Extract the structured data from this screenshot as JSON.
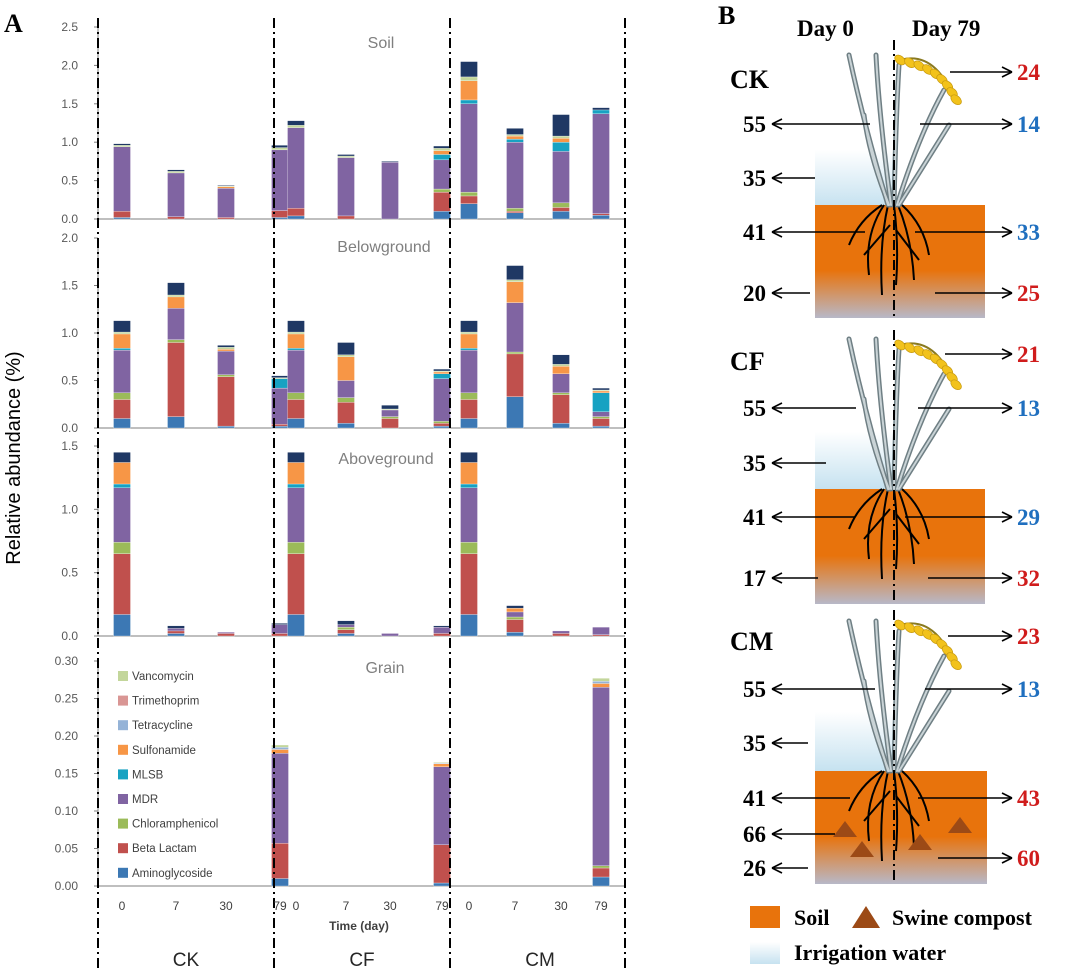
{
  "panel_a_label": "A",
  "panel_b_label": "B",
  "colors": {
    "Aminoglycoside": "#3c78b4",
    "Beta Lactam": "#c0504d",
    "Chloramphenicol": "#9bbb59",
    "MDR": "#8064a2",
    "MLSB": "#17a2c2",
    "Sulfonamide": "#f79646",
    "Tetracycline": "#95b3d7",
    "Trimethoprim": "#d99694",
    "Vancomycin": "#c3d69b",
    "Other": "#1f3864",
    "soil": "#e8730c",
    "water": "#cde6f2",
    "compost": "#8b4513",
    "spike": "#f2c21b"
  },
  "chart_data": {
    "type": "bar",
    "stacked": true,
    "ylabel": "Relative abundance (%)",
    "xlabel": "Time (day)",
    "groups": [
      "CK",
      "CF",
      "CM"
    ],
    "categories": [
      "0",
      "7",
      "30",
      "79"
    ],
    "legend": [
      "Vancomycin",
      "Trimethoprim",
      "Tetracycline",
      "Sulfonamide",
      "MLSB",
      "MDR",
      "Chloramphenicol",
      "Beta Lactam",
      "Aminoglycoside"
    ],
    "stack_order": [
      "Aminoglycoside",
      "Beta Lactam",
      "Chloramphenicol",
      "MDR",
      "MLSB",
      "Sulfonamide",
      "Tetracycline",
      "Trimethoprim",
      "Vancomycin",
      "Other"
    ],
    "panels": [
      {
        "title": "Soil",
        "ylim": [
          0,
          2.5
        ],
        "yticks": [
          "0.0",
          "0.5",
          "1.0",
          "1.5",
          "2.0",
          "2.5"
        ],
        "tick_values": [
          0,
          0.5,
          1.0,
          1.5,
          2.0,
          2.5
        ],
        "bars": [
          [
            0.02,
            0.08,
            0.0,
            0.84,
            0.0,
            0.0,
            0.0,
            0.0,
            0.02,
            0.02
          ],
          [
            0.0,
            0.03,
            0.0,
            0.57,
            0.0,
            0.0,
            0.0,
            0.0,
            0.02,
            0.02
          ],
          [
            0.0,
            0.02,
            0.0,
            0.38,
            0.0,
            0.02,
            0.0,
            0.0,
            0.01,
            0.01
          ],
          [
            0.02,
            0.09,
            0.0,
            0.79,
            0.0,
            0.0,
            0.0,
            0.0,
            0.03,
            0.03
          ],
          [
            0.04,
            0.1,
            0.0,
            1.05,
            0.0,
            0.0,
            0.0,
            0.0,
            0.03,
            0.06
          ],
          [
            0.0,
            0.04,
            0.0,
            0.76,
            0.0,
            0.0,
            0.0,
            0.0,
            0.02,
            0.02
          ],
          [
            0.0,
            0.0,
            0.0,
            0.74,
            0.0,
            0.0,
            0.0,
            0.0,
            0.0,
            0.01
          ],
          [
            0.1,
            0.25,
            0.04,
            0.38,
            0.07,
            0.05,
            0.0,
            0.0,
            0.03,
            0.03
          ],
          [
            0.2,
            0.1,
            0.05,
            1.15,
            0.05,
            0.25,
            0.0,
            0.0,
            0.05,
            0.2
          ],
          [
            0.08,
            0.02,
            0.04,
            0.86,
            0.04,
            0.04,
            0.0,
            0.0,
            0.02,
            0.08
          ],
          [
            0.1,
            0.05,
            0.06,
            0.67,
            0.12,
            0.05,
            0.0,
            0.0,
            0.03,
            0.28
          ],
          [
            0.05,
            0.02,
            0.0,
            1.3,
            0.05,
            0.0,
            0.0,
            0.0,
            0.0,
            0.03
          ]
        ]
      },
      {
        "title": "Belowground",
        "ylim": [
          0,
          2.0
        ],
        "yticks": [
          "0.0",
          "0.5",
          "1.0",
          "1.5",
          "2.0"
        ],
        "tick_values": [
          0,
          0.5,
          1.0,
          1.5,
          2.0
        ],
        "bars": [
          [
            0.1,
            0.2,
            0.07,
            0.45,
            0.02,
            0.15,
            0.0,
            0.0,
            0.02,
            0.12
          ],
          [
            0.12,
            0.78,
            0.03,
            0.33,
            0.0,
            0.12,
            0.0,
            0.0,
            0.02,
            0.13
          ],
          [
            0.02,
            0.52,
            0.02,
            0.25,
            0.0,
            0.02,
            0.0,
            0.0,
            0.02,
            0.02
          ],
          [
            0.02,
            0.02,
            0.0,
            0.38,
            0.1,
            0.0,
            0.0,
            0.0,
            0.01,
            0.02
          ],
          [
            0.1,
            0.2,
            0.07,
            0.45,
            0.02,
            0.15,
            0.0,
            0.0,
            0.02,
            0.12
          ],
          [
            0.05,
            0.22,
            0.05,
            0.18,
            0.0,
            0.25,
            0.0,
            0.0,
            0.02,
            0.13
          ],
          [
            0.0,
            0.1,
            0.02,
            0.07,
            0.0,
            0.0,
            0.0,
            0.0,
            0.01,
            0.04
          ],
          [
            0.02,
            0.03,
            0.02,
            0.45,
            0.05,
            0.02,
            0.0,
            0.0,
            0.01,
            0.02
          ],
          [
            0.1,
            0.2,
            0.07,
            0.45,
            0.02,
            0.15,
            0.0,
            0.0,
            0.02,
            0.12
          ],
          [
            0.33,
            0.45,
            0.02,
            0.52,
            0.0,
            0.22,
            0.0,
            0.0,
            0.02,
            0.15
          ],
          [
            0.05,
            0.3,
            0.02,
            0.2,
            0.0,
            0.08,
            0.0,
            0.0,
            0.02,
            0.1
          ],
          [
            0.02,
            0.08,
            0.02,
            0.05,
            0.2,
            0.02,
            0.0,
            0.0,
            0.01,
            0.02
          ]
        ]
      },
      {
        "title": "Aboveground",
        "ylim": [
          0,
          1.5
        ],
        "yticks": [
          "0.0",
          "0.5",
          "1.0",
          "1.5"
        ],
        "tick_values": [
          0,
          0.5,
          1.0,
          1.5
        ],
        "bars": [
          [
            0.17,
            0.48,
            0.09,
            0.43,
            0.03,
            0.17,
            0.0,
            0.0,
            0.0,
            0.08
          ],
          [
            0.02,
            0.02,
            0.0,
            0.02,
            0.0,
            0.0,
            0.0,
            0.0,
            0.0,
            0.02
          ],
          [
            0.0,
            0.02,
            0.0,
            0.01,
            0.0,
            0.0,
            0.0,
            0.0,
            0.0,
            0.0
          ],
          [
            0.0,
            0.02,
            0.0,
            0.07,
            0.0,
            0.0,
            0.0,
            0.0,
            0.0,
            0.01
          ],
          [
            0.17,
            0.48,
            0.09,
            0.43,
            0.03,
            0.17,
            0.0,
            0.0,
            0.0,
            0.08
          ],
          [
            0.02,
            0.03,
            0.02,
            0.02,
            0.0,
            0.0,
            0.0,
            0.0,
            0.0,
            0.03
          ],
          [
            0.0,
            0.0,
            0.0,
            0.02,
            0.0,
            0.0,
            0.0,
            0.0,
            0.0,
            0.0
          ],
          [
            0.0,
            0.02,
            0.0,
            0.05,
            0.0,
            0.0,
            0.0,
            0.0,
            0.0,
            0.01
          ],
          [
            0.17,
            0.48,
            0.09,
            0.43,
            0.03,
            0.17,
            0.0,
            0.0,
            0.0,
            0.08
          ],
          [
            0.03,
            0.1,
            0.02,
            0.04,
            0.0,
            0.03,
            0.0,
            0.0,
            0.0,
            0.02
          ],
          [
            0.0,
            0.02,
            0.0,
            0.02,
            0.0,
            0.0,
            0.0,
            0.0,
            0.0,
            0.0
          ],
          [
            0.0,
            0.01,
            0.0,
            0.06,
            0.0,
            0.0,
            0.0,
            0.0,
            0.0,
            0.0
          ]
        ]
      },
      {
        "title": "Grain",
        "ylim": [
          0,
          0.3
        ],
        "yticks": [
          "0.00",
          "0.05",
          "0.10",
          "0.15",
          "0.20",
          "0.25",
          "0.30"
        ],
        "tick_values": [
          0,
          0.05,
          0.1,
          0.15,
          0.2,
          0.25,
          0.3
        ],
        "bars": [
          [
            0,
            0,
            0,
            0,
            0,
            0,
            0,
            0,
            0,
            0
          ],
          [
            0,
            0,
            0,
            0,
            0,
            0,
            0,
            0,
            0,
            0
          ],
          [
            0,
            0,
            0,
            0,
            0,
            0,
            0,
            0,
            0,
            0
          ],
          [
            0.01,
            0.047,
            0.0,
            0.12,
            0.0,
            0.005,
            0.003,
            0.0,
            0.003,
            0.0
          ],
          [
            0,
            0,
            0,
            0,
            0,
            0,
            0,
            0,
            0,
            0
          ],
          [
            0,
            0,
            0,
            0,
            0,
            0,
            0,
            0,
            0,
            0
          ],
          [
            0,
            0,
            0,
            0,
            0,
            0,
            0,
            0,
            0,
            0
          ],
          [
            0.004,
            0.051,
            0.0,
            0.104,
            0.0,
            0.004,
            0.001,
            0.0,
            0.001,
            0.0
          ],
          [
            0,
            0,
            0,
            0,
            0,
            0,
            0,
            0,
            0,
            0
          ],
          [
            0,
            0,
            0,
            0,
            0,
            0,
            0,
            0,
            0,
            0
          ],
          [
            0,
            0,
            0,
            0,
            0,
            0,
            0,
            0,
            0,
            0
          ],
          [
            0.012,
            0.012,
            0.003,
            0.238,
            0.0,
            0.005,
            0.003,
            0.0,
            0.004,
            0.0
          ]
        ]
      }
    ]
  },
  "panel_b": {
    "header_left": "Day 0",
    "header_right": "Day 79",
    "treatments": [
      {
        "name": "CK",
        "left": [
          "55",
          "35",
          "41",
          "20"
        ],
        "right": [
          "24",
          "14",
          "33",
          "25"
        ],
        "right_colors": [
          "red",
          "blue",
          "blue",
          "red"
        ],
        "compost": false
      },
      {
        "name": "CF",
        "left": [
          "55",
          "35",
          "41",
          "17"
        ],
        "right": [
          "21",
          "13",
          "29",
          "32"
        ],
        "right_colors": [
          "red",
          "blue",
          "blue",
          "red"
        ],
        "compost": false
      },
      {
        "name": "CM",
        "left": [
          "55",
          "35",
          "41",
          "66",
          "26"
        ],
        "right": [
          "23",
          "13",
          "43",
          "60"
        ],
        "right_colors": [
          "red",
          "blue",
          "red",
          "red"
        ],
        "compost": true
      }
    ],
    "legend": {
      "soil": "Soil",
      "compost": "Swine compost",
      "water": "Irrigation water"
    }
  }
}
